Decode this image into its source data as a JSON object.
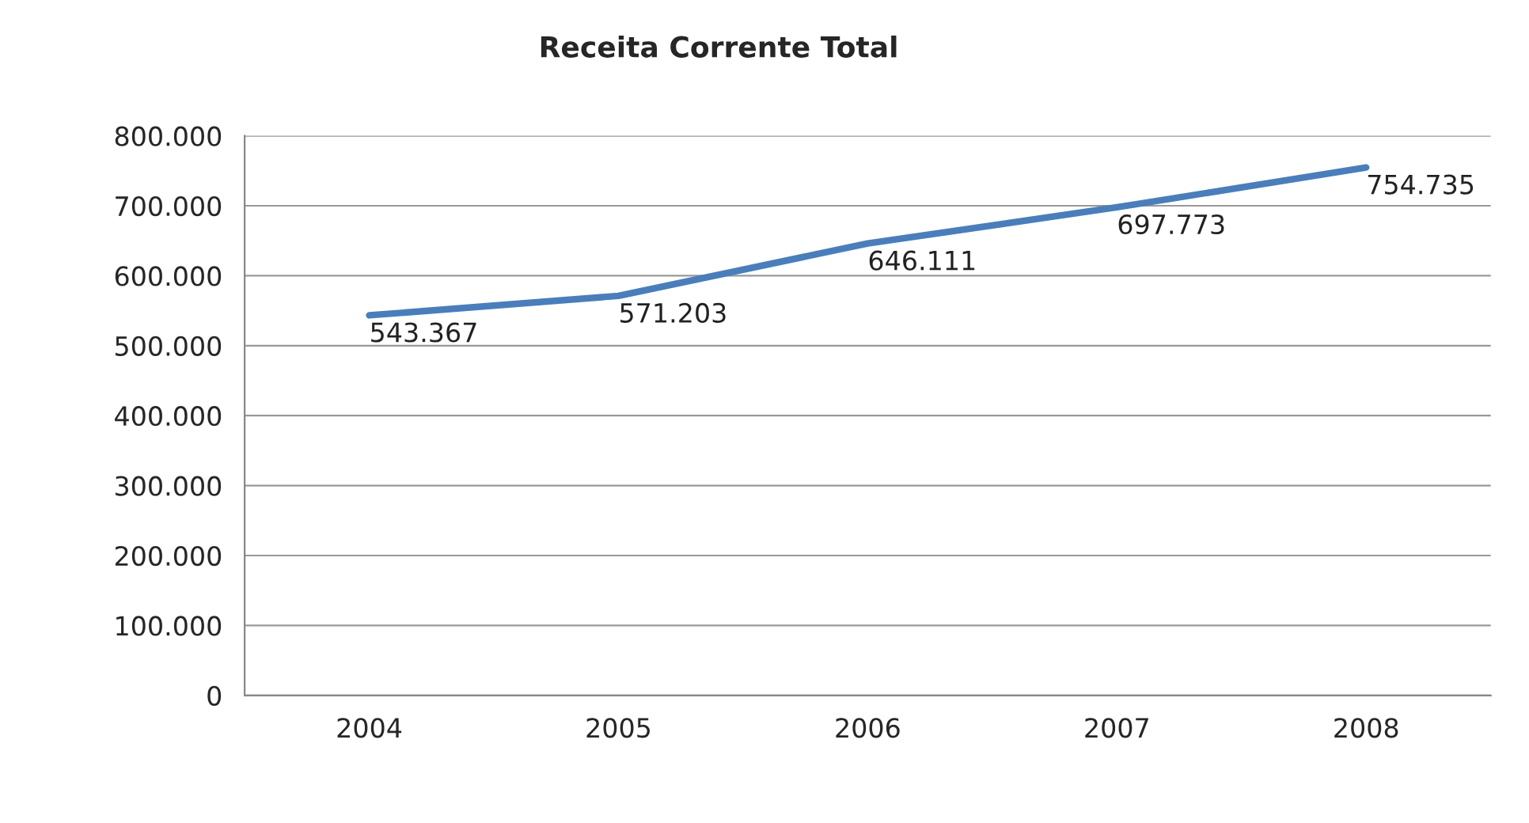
{
  "chart_data": {
    "type": "line",
    "title": "Receita Corrente Total",
    "categories": [
      "2004",
      "2005",
      "2006",
      "2007",
      "2008"
    ],
    "series": [
      {
        "color": "#4a7ebb",
        "values": [
          543367,
          571203,
          646111,
          697773,
          754735
        ],
        "value_labels": [
          "543.367",
          "571.203",
          "646.111",
          "697.773",
          "754.735"
        ]
      }
    ],
    "ylim": [
      0,
      800000
    ],
    "yticks": [
      {
        "value": 0,
        "label": "0"
      },
      {
        "value": 100000,
        "label": "100.000"
      },
      {
        "value": 200000,
        "label": "200.000"
      },
      {
        "value": 300000,
        "label": "300.000"
      },
      {
        "value": 400000,
        "label": "400.000"
      },
      {
        "value": 500000,
        "label": "500.000"
      },
      {
        "value": 600000,
        "label": "600.000"
      },
      {
        "value": 700000,
        "label": "700.000"
      },
      {
        "value": 800000,
        "label": "800.000"
      }
    ],
    "grid": "y",
    "marker": "none",
    "line_style": "solid"
  }
}
